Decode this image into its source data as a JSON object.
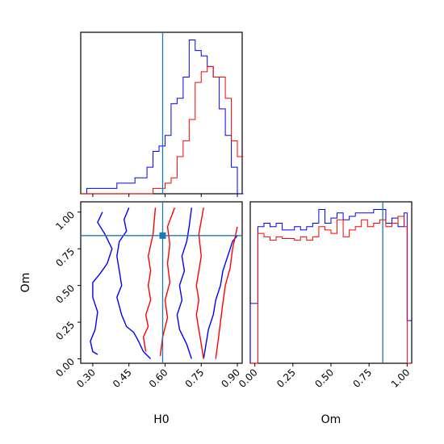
{
  "chart_data": [
    {
      "panel": "hist-H0",
      "type": "histogram",
      "xlim": [
        0.25,
        0.92
      ],
      "bin_edges": [
        0.25,
        0.275,
        0.3,
        0.325,
        0.35,
        0.375,
        0.4,
        0.425,
        0.45,
        0.475,
        0.5,
        0.525,
        0.55,
        0.575,
        0.6,
        0.625,
        0.65,
        0.675,
        0.7,
        0.725,
        0.75,
        0.775,
        0.8,
        0.825,
        0.85,
        0.875,
        0.9,
        0.925
      ],
      "series": [
        {
          "color": "#0000ff",
          "values": [
            0,
            1,
            1,
            1,
            1,
            1,
            2,
            2,
            2,
            3,
            3,
            5,
            8,
            9,
            11,
            17,
            18,
            22,
            29,
            27,
            26,
            24,
            22,
            16,
            11,
            5,
            0
          ]
        },
        {
          "color": "#ff0000",
          "values": [
            0,
            0,
            0,
            0,
            0,
            0,
            0,
            0,
            0,
            0,
            0,
            0,
            1,
            1,
            2,
            3,
            7,
            10,
            14,
            21,
            23,
            24,
            22,
            22,
            18,
            10,
            7
          ]
        }
      ],
      "truth_x": 0.59
    },
    {
      "panel": "hist-Om",
      "type": "histogram",
      "xlim": [
        -0.03,
        1.03
      ],
      "bin_edges": [
        -0.03,
        0.0,
        0.02,
        0.06,
        0.1,
        0.14,
        0.18,
        0.22,
        0.26,
        0.3,
        0.34,
        0.38,
        0.42,
        0.46,
        0.5,
        0.54,
        0.58,
        0.62,
        0.66,
        0.7,
        0.74,
        0.78,
        0.82,
        0.86,
        0.9,
        0.94,
        0.98,
        1.0,
        1.03
      ],
      "series": [
        {
          "color": "#0000ff",
          "values": [
            0.35,
            0.35,
            0.8,
            0.82,
            0.8,
            0.82,
            0.78,
            0.78,
            0.8,
            0.78,
            0.8,
            0.82,
            0.9,
            0.82,
            0.85,
            0.88,
            0.84,
            0.86,
            0.88,
            0.88,
            0.88,
            0.9,
            0.9,
            0.82,
            0.85,
            0.8,
            0.88,
            0.25
          ]
        },
        {
          "color": "#ff0000",
          "values": [
            0,
            0,
            0.76,
            0.74,
            0.72,
            0.74,
            0.73,
            0.73,
            0.72,
            0.74,
            0.72,
            0.74,
            0.8,
            0.78,
            0.76,
            0.84,
            0.74,
            0.78,
            0.8,
            0.84,
            0.8,
            0.82,
            0.84,
            0.8,
            0.82,
            0.86,
            0.8,
            0
          ]
        }
      ],
      "truth_x": 0.84
    },
    {
      "panel": "contour-H0-Om",
      "type": "contour",
      "xlim": [
        0.25,
        0.92
      ],
      "ylim": [
        -0.03,
        1.07
      ],
      "truth": {
        "x": 0.59,
        "y": 0.84
      },
      "series": [
        {
          "color": "#0000ff",
          "levels": [
            [
              [
                0.34,
                1.0
              ],
              [
                0.32,
                0.93
              ],
              [
                0.35,
                0.85
              ],
              [
                0.38,
                0.75
              ],
              [
                0.36,
                0.65
              ],
              [
                0.33,
                0.58
              ],
              [
                0.3,
                0.52
              ],
              [
                0.3,
                0.42
              ],
              [
                0.32,
                0.32
              ],
              [
                0.31,
                0.2
              ],
              [
                0.29,
                0.12
              ],
              [
                0.3,
                0.05
              ],
              [
                0.32,
                0.03
              ]
            ],
            [
              [
                0.54,
                0.0
              ],
              [
                0.51,
                0.05
              ],
              [
                0.49,
                0.12
              ],
              [
                0.47,
                0.18
              ],
              [
                0.44,
                0.22
              ],
              [
                0.42,
                0.3
              ],
              [
                0.4,
                0.42
              ],
              [
                0.42,
                0.5
              ],
              [
                0.41,
                0.6
              ],
              [
                0.4,
                0.7
              ],
              [
                0.41,
                0.8
              ],
              [
                0.44,
                0.87
              ],
              [
                0.43,
                0.95
              ],
              [
                0.45,
                1.03
              ]
            ],
            [
              [
                0.71,
                0.0
              ],
              [
                0.69,
                0.1
              ],
              [
                0.66,
                0.2
              ],
              [
                0.65,
                0.3
              ],
              [
                0.67,
                0.4
              ],
              [
                0.66,
                0.5
              ],
              [
                0.68,
                0.6
              ],
              [
                0.67,
                0.7
              ],
              [
                0.69,
                0.8
              ],
              [
                0.7,
                0.9
              ],
              [
                0.71,
                1.03
              ]
            ],
            [
              [
                0.76,
                0.0
              ],
              [
                0.77,
                0.1
              ],
              [
                0.78,
                0.2
              ],
              [
                0.8,
                0.3
              ],
              [
                0.81,
                0.4
              ],
              [
                0.83,
                0.5
              ],
              [
                0.84,
                0.6
              ],
              [
                0.86,
                0.7
              ],
              [
                0.88,
                0.8
              ],
              [
                0.9,
                0.84
              ]
            ]
          ]
        },
        {
          "color": "#ff0000",
          "levels": [
            [
              [
                0.58,
                0.02
              ],
              [
                0.59,
                0.15
              ],
              [
                0.61,
                0.28
              ],
              [
                0.6,
                0.4
              ],
              [
                0.62,
                0.52
              ],
              [
                0.61,
                0.65
              ],
              [
                0.62,
                0.78
              ],
              [
                0.61,
                0.9
              ],
              [
                0.64,
                1.03
              ]
            ],
            [
              [
                0.52,
                0.05
              ],
              [
                0.51,
                0.15
              ],
              [
                0.53,
                0.22
              ],
              [
                0.52,
                0.3
              ],
              [
                0.54,
                0.4
              ],
              [
                0.53,
                0.5
              ],
              [
                0.54,
                0.6
              ],
              [
                0.53,
                0.7
              ],
              [
                0.55,
                0.85
              ],
              [
                0.56,
                1.03
              ]
            ],
            [
              [
                0.76,
                0.0
              ],
              [
                0.75,
                0.1
              ],
              [
                0.74,
                0.2
              ],
              [
                0.73,
                0.3
              ],
              [
                0.74,
                0.4
              ],
              [
                0.73,
                0.5
              ],
              [
                0.74,
                0.6
              ],
              [
                0.75,
                0.7
              ],
              [
                0.74,
                0.85
              ],
              [
                0.76,
                1.03
              ]
            ],
            [
              [
                0.81,
                0.0
              ],
              [
                0.82,
                0.12
              ],
              [
                0.83,
                0.25
              ],
              [
                0.84,
                0.38
              ],
              [
                0.85,
                0.5
              ],
              [
                0.87,
                0.62
              ],
              [
                0.88,
                0.75
              ],
              [
                0.9,
                0.9
              ]
            ]
          ]
        }
      ]
    }
  ],
  "axes": {
    "x_H0": {
      "label": "H0",
      "ticks": [
        0.3,
        0.45,
        0.6,
        0.75,
        0.9
      ],
      "ticklabels": [
        "0.30",
        "0.45",
        "0.60",
        "0.75",
        "0.90"
      ]
    },
    "y_Om": {
      "label": "Om",
      "ticks": [
        0.0,
        0.25,
        0.5,
        0.75,
        1.0
      ],
      "ticklabels": [
        "0.00",
        "0.25",
        "0.50",
        "0.75",
        "1.00"
      ]
    },
    "x_Om": {
      "label": "Om",
      "ticks": [
        0.0,
        0.25,
        0.5,
        0.75,
        1.0
      ],
      "ticklabels": [
        "0.00",
        "0.25",
        "0.50",
        "0.75",
        "1.00"
      ]
    }
  },
  "colors": {
    "series_a": "#0000ff",
    "series_b": "#ff0000",
    "truth": "#1f77b4"
  }
}
